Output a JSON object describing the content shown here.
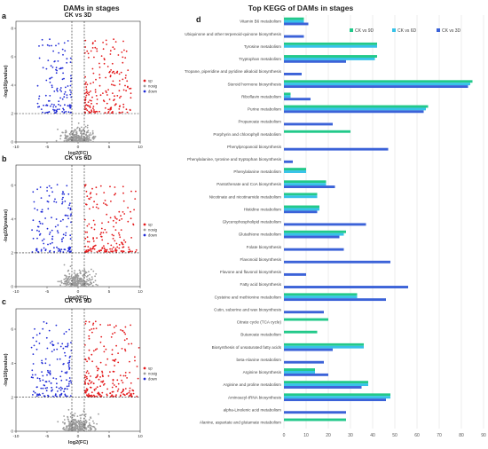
{
  "left_title": "DAMs in stages",
  "right_title": "Top KEGG of DAMs in stages",
  "colors": {
    "up": "#e41a1c",
    "nosig": "#9a9a9a",
    "down": "#1f2ad6",
    "ck_vs_9d": "#22c98a",
    "ck_vs_6d": "#36c2e8",
    "ck_vs_3d": "#3b62d8",
    "band": "#d4f3ee"
  },
  "chart_data": [
    {
      "type": "scatter",
      "panel": "a",
      "title": "CK vs 3D",
      "xlabel": "log2(FC)",
      "ylabel": "-log10(pvalue)",
      "xlim": [
        -10,
        10
      ],
      "ylim": [
        0,
        8.5
      ],
      "xticks": [
        "-10",
        "-5",
        "0",
        "5",
        "10"
      ],
      "yticks": [
        "0",
        "2",
        "4",
        "6",
        "8"
      ],
      "threshold_x": [
        -1,
        1
      ],
      "threshold_y": 2,
      "legend": [
        "up",
        "nosig",
        "down"
      ],
      "points": {
        "up": 190,
        "down": 130,
        "nosig": 260
      },
      "extents": {
        "down_min_x": -6.5,
        "up_max_x": 8.5,
        "max_y": 7.5
      },
      "seed": 11
    },
    {
      "type": "scatter",
      "panel": "b",
      "title": "CK vs 6D",
      "xlabel": "log2(FC)",
      "ylabel": "-log10(pvalue)",
      "xlim": [
        -10,
        10
      ],
      "ylim": [
        0,
        7.2
      ],
      "xticks": [
        "-10",
        "-5",
        "0",
        "5",
        "10"
      ],
      "yticks": [
        "0",
        "2",
        "4",
        "6"
      ],
      "threshold_x": [
        -1,
        1
      ],
      "threshold_y": 2,
      "legend": [
        "up",
        "nosig",
        "down"
      ],
      "points": {
        "up": 180,
        "down": 130,
        "nosig": 250
      },
      "extents": {
        "down_min_x": -7.5,
        "up_max_x": 9.5,
        "max_y": 6.3
      },
      "seed": 23
    },
    {
      "type": "scatter",
      "panel": "c",
      "title": "CK vs 9D",
      "xlabel": "log2(FC)",
      "ylabel": "-log10(pvalue)",
      "xlim": [
        -10,
        10
      ],
      "ylim": [
        0,
        7.2
      ],
      "xticks": [
        "-10",
        "-5",
        "0",
        "5",
        "10"
      ],
      "yticks": [
        "0",
        "2",
        "4",
        "6"
      ],
      "threshold_x": [
        -1,
        1
      ],
      "threshold_y": 2,
      "legend": [
        "up",
        "nosig",
        "down"
      ],
      "points": {
        "up": 220,
        "down": 150,
        "nosig": 250
      },
      "extents": {
        "down_min_x": -7.5,
        "up_max_x": 10,
        "max_y": 6.8
      },
      "seed": 37
    },
    {
      "type": "bar",
      "panel": "d",
      "orientation": "horizontal",
      "title": "Top KEGG of DAMs in stages",
      "xlim": [
        0,
        90
      ],
      "xticks": [
        0,
        10,
        20,
        30,
        40,
        50,
        60,
        70,
        80,
        90
      ],
      "legend_position": "top-right",
      "categories": [
        "Vitamin B6 metabolism",
        "Ubiquinone and other terpenoid-quinone biosynthesis",
        "Tyrosine metabolism",
        "Tryptophan metabolism",
        "Tropane, piperidine and pyridine alkaloid biosynthesis",
        "Steroid hormone biosynthesis",
        "Riboflavin metabolism",
        "Purine metabolism",
        "Propanoate metabolism",
        "Porphyrin and chlorophyll metabolism",
        "Phenylpropanoid biosynthesis",
        "Phenylalanine, tyrosine and tryptophan biosynthesis",
        "Phenylalanine metabolism",
        "Pantothenate and CoA biosynthesis",
        "Nicotinate and nicotinamide metabolism",
        "Histidine metabolism",
        "Glycerophospholipid metabolism",
        "Glutathione metabolism",
        "Folate biosynthesis",
        "Flavonoid biosynthesis",
        "Flavone and flavonol biosynthesis",
        "Fatty acid biosynthesis",
        "Cysteine and methionine metabolism",
        "Cutin, suberine and wax biosynthesis",
        "Citrate cycle (TCA cycle)",
        "Butanoate metabolism",
        "Biosynthesis of unsaturated fatty acids",
        "beta-Alanine metabolism",
        "Arginine biosynthesis",
        "Arginine and proline metabolism",
        "Aminoacyl-tRNA biosynthesis",
        "alpha-Linolenic acid metabolism",
        "Alanine, aspartate and glutamate metabolism"
      ],
      "series": [
        {
          "name": "CK vs 9D",
          "values": [
            9,
            0,
            42,
            42,
            0,
            85,
            3,
            65,
            0,
            30,
            0,
            0,
            10,
            19,
            15,
            16,
            0,
            28,
            0,
            0,
            0,
            0,
            33,
            0,
            20,
            15,
            36,
            0,
            14,
            38,
            48,
            0,
            28
          ]
        },
        {
          "name": "CK vs 6D",
          "values": [
            9,
            0,
            42,
            41,
            0,
            84,
            3,
            64,
            0,
            0,
            0,
            0,
            10,
            19,
            15,
            16,
            0,
            27,
            0,
            0,
            0,
            0,
            33,
            0,
            0,
            0,
            36,
            0,
            14,
            38,
            48,
            0,
            0
          ]
        },
        {
          "name": "CK vs 3D",
          "values": [
            11,
            9,
            0,
            28,
            8,
            83,
            12,
            63,
            22,
            0,
            47,
            4,
            0,
            23,
            0,
            15,
            37,
            25,
            27,
            48,
            10,
            56,
            46,
            18,
            0,
            0,
            22,
            18,
            20,
            35,
            46,
            28,
            0
          ]
        }
      ]
    }
  ]
}
